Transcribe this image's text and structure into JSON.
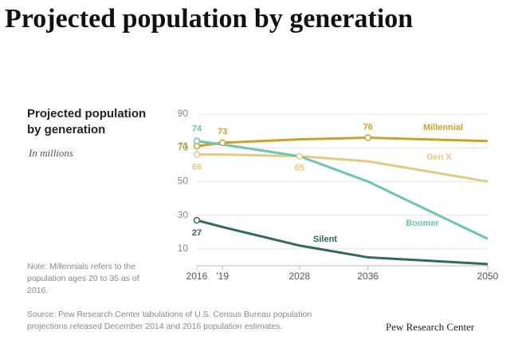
{
  "header": {
    "title": "Projected population by generation"
  },
  "chart_data": {
    "type": "line",
    "title": "Projected population by generation",
    "subtitle": "In millions",
    "x": [
      2016,
      2019,
      2028,
      2036,
      2050
    ],
    "xlim": [
      2016,
      2050
    ],
    "xticks": [
      2016,
      {
        "value": 2019,
        "label": "'19"
      },
      2028,
      2036,
      2050
    ],
    "ylim": [
      0,
      90
    ],
    "yticks": [
      10,
      30,
      50,
      70,
      90
    ],
    "series": [
      {
        "name": "Millennial",
        "color": "#c9a227",
        "values": [
          71,
          73,
          75,
          76,
          74
        ],
        "value_labels": [
          "71",
          "73",
          null,
          "76",
          null
        ]
      },
      {
        "name": "Gen X",
        "color": "#e6c980",
        "values": [
          66,
          66,
          65,
          62,
          50
        ],
        "value_labels": [
          "66",
          null,
          "65",
          null,
          null
        ]
      },
      {
        "name": "Boomer",
        "color": "#6cc5b2",
        "values": [
          74,
          72,
          65,
          50,
          16
        ],
        "value_labels": [
          "74",
          null,
          null,
          null,
          null
        ]
      },
      {
        "name": "Silent",
        "color": "#2f6b56",
        "values": [
          27,
          23,
          12,
          5,
          1
        ],
        "value_labels": [
          "27",
          null,
          null,
          null,
          null
        ]
      }
    ],
    "note": "Note: Millennials refers to the population ages 20 to 35 as of 2016.",
    "source": "Source: Pew Research Center tabulations of U.S. Census Bureau population projections released December 2014 and 2016 population estimates.",
    "credit": "Pew Research Center"
  }
}
